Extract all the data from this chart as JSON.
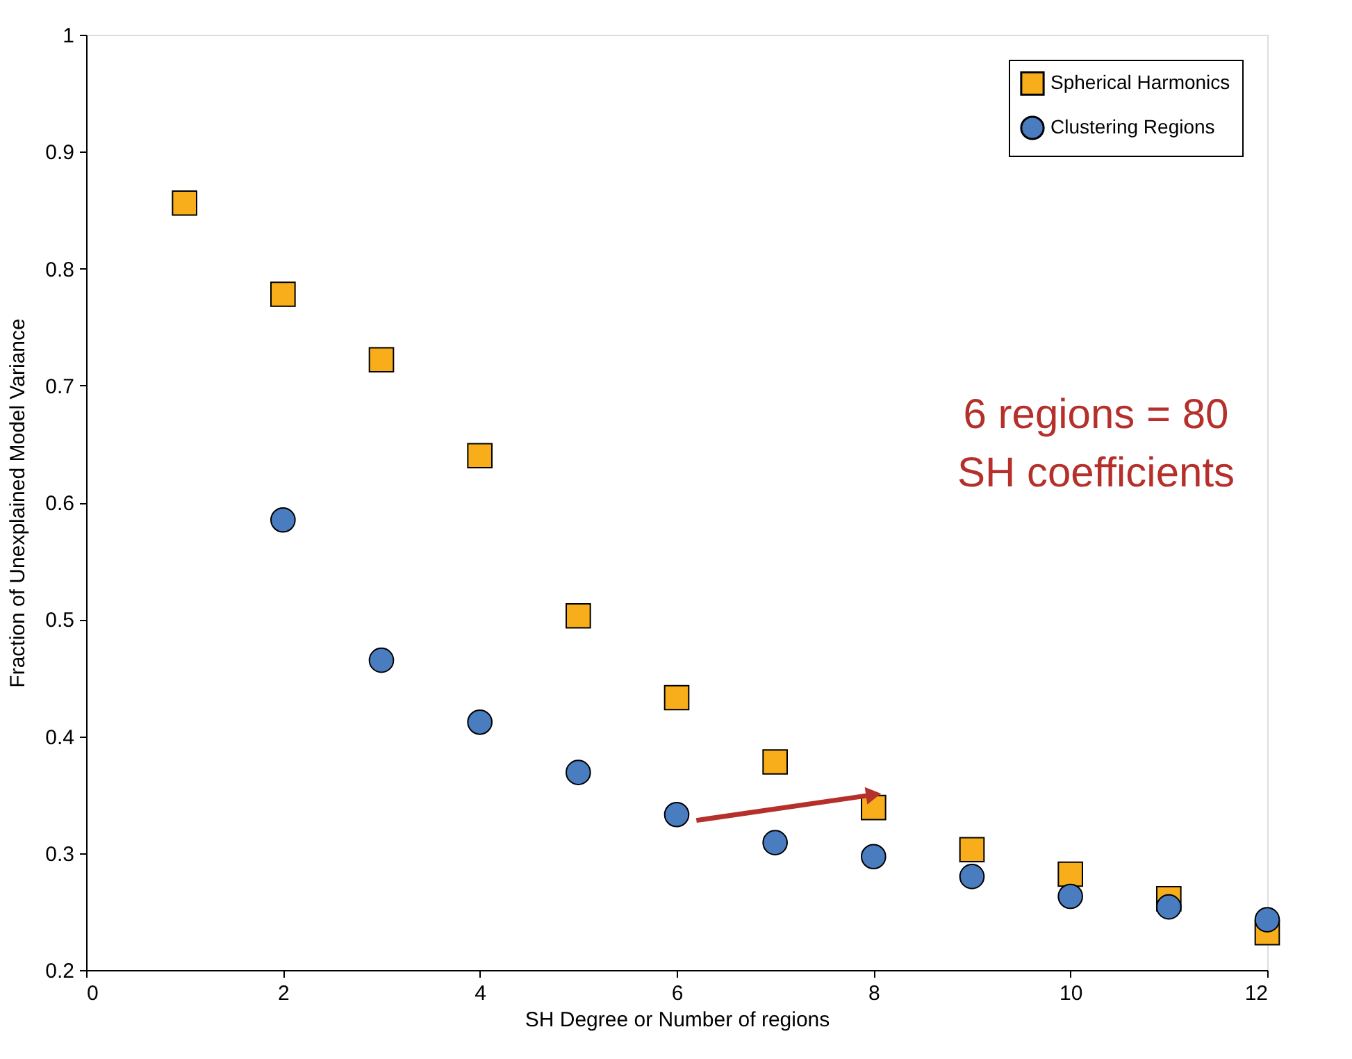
{
  "chart_data": {
    "type": "scatter",
    "xlabel": "SH Degree or Number of regions",
    "ylabel": "Fraction of Unexplained Model Variance",
    "series": [
      {
        "name": "Spherical Harmonics",
        "color": "#f7ae1a",
        "marker": "square",
        "x": [
          1,
          2,
          3,
          4,
          5,
          6,
          7,
          8,
          9,
          10,
          11,
          12
        ],
        "values": [
          0.856,
          0.778,
          0.722,
          0.64,
          0.503,
          0.433,
          0.378,
          0.339,
          0.303,
          0.282,
          0.261,
          0.232
        ]
      },
      {
        "name": "Clustering Regions",
        "color": "#4a7cc0",
        "marker": "circle",
        "x": [
          2,
          3,
          4,
          5,
          6,
          7,
          8,
          9,
          10,
          11,
          12
        ],
        "values": [
          0.585,
          0.465,
          0.412,
          0.369,
          0.333,
          0.309,
          0.297,
          0.28,
          0.263,
          0.254,
          0.243
        ]
      },
      {
        "type": "line",
        "color": "#b5302a",
        "marker": "triangle",
        "x": [
          6.2,
          8
        ],
        "values": [
          0.328,
          0.35
        ]
      }
    ],
    "annotations": [
      "6 regions = 80\nSH coefficients"
    ],
    "xlim": [
      0,
      12
    ],
    "xticks": [
      0,
      2,
      4,
      6,
      8,
      10,
      12
    ],
    "ylim": [
      0.2,
      1
    ],
    "yticks": [
      0.2,
      0.3,
      0.4,
      0.5,
      0.6,
      0.7,
      0.8,
      0.9,
      1
    ],
    "grid": false,
    "legend": "top right"
  }
}
